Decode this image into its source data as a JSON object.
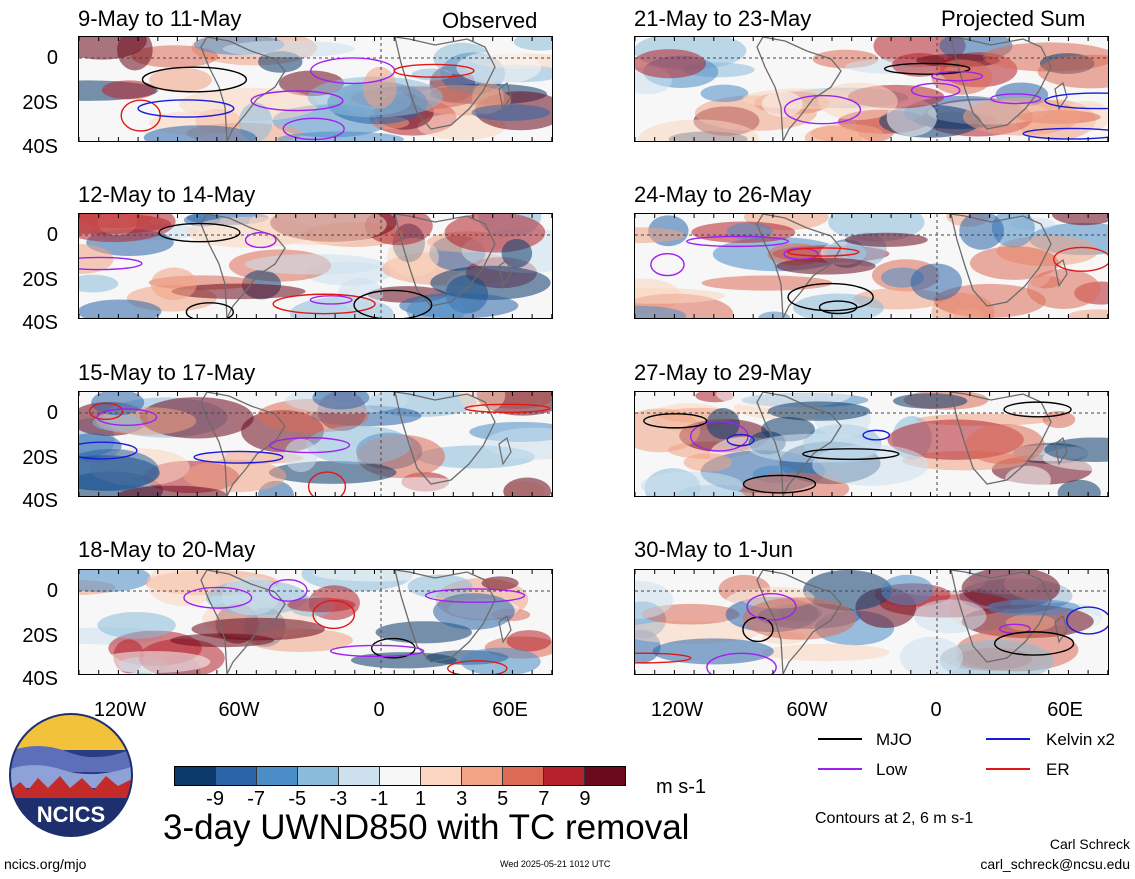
{
  "observed_label": "Observed",
  "projected_label": "Projected Sum",
  "panels_left": [
    {
      "title": "9-May to 11-May"
    },
    {
      "title": "12-May to 14-May"
    },
    {
      "title": "15-May to 17-May"
    },
    {
      "title": "18-May to 20-May"
    }
  ],
  "panels_right": [
    {
      "title": "21-May to 23-May"
    },
    {
      "title": "24-May to 26-May"
    },
    {
      "title": "27-May to 29-May"
    },
    {
      "title": "30-May to 1-Jun"
    }
  ],
  "lat_labels": [
    "0",
    "20S",
    "40S"
  ],
  "lon_labels": [
    "120W",
    "60W",
    "0",
    "60E"
  ],
  "colorbar": {
    "colors": [
      "#0b3a6b",
      "#2a64a7",
      "#4b8dc7",
      "#8bbbda",
      "#cce0ee",
      "#f7f7f7",
      "#fcd5c0",
      "#f1a383",
      "#dc6b55",
      "#b5222c",
      "#6b0a1c"
    ],
    "tick_labels": [
      "-9",
      "-7",
      "-5",
      "-3",
      "-1",
      "1",
      "3",
      "5",
      "7",
      "9"
    ],
    "units": "m s-1"
  },
  "main_title": "3-day UWND850 with TC removal",
  "legend": [
    {
      "label": "MJO",
      "color": "#000000"
    },
    {
      "label": "Kelvin x2",
      "color": "#1a1adc"
    },
    {
      "label": "Low",
      "color": "#a020f0"
    },
    {
      "label": "ER",
      "color": "#e01818"
    }
  ],
  "contours_note": "Contours at 2, 6 m s-1",
  "logo_text": "NCICS",
  "website": "ncics.org/mjo",
  "timestamp": "Wed 2025-05-21 1012 UTC",
  "author": "Carl Schreck",
  "email": "carl_schreck@ncsu.edu"
}
